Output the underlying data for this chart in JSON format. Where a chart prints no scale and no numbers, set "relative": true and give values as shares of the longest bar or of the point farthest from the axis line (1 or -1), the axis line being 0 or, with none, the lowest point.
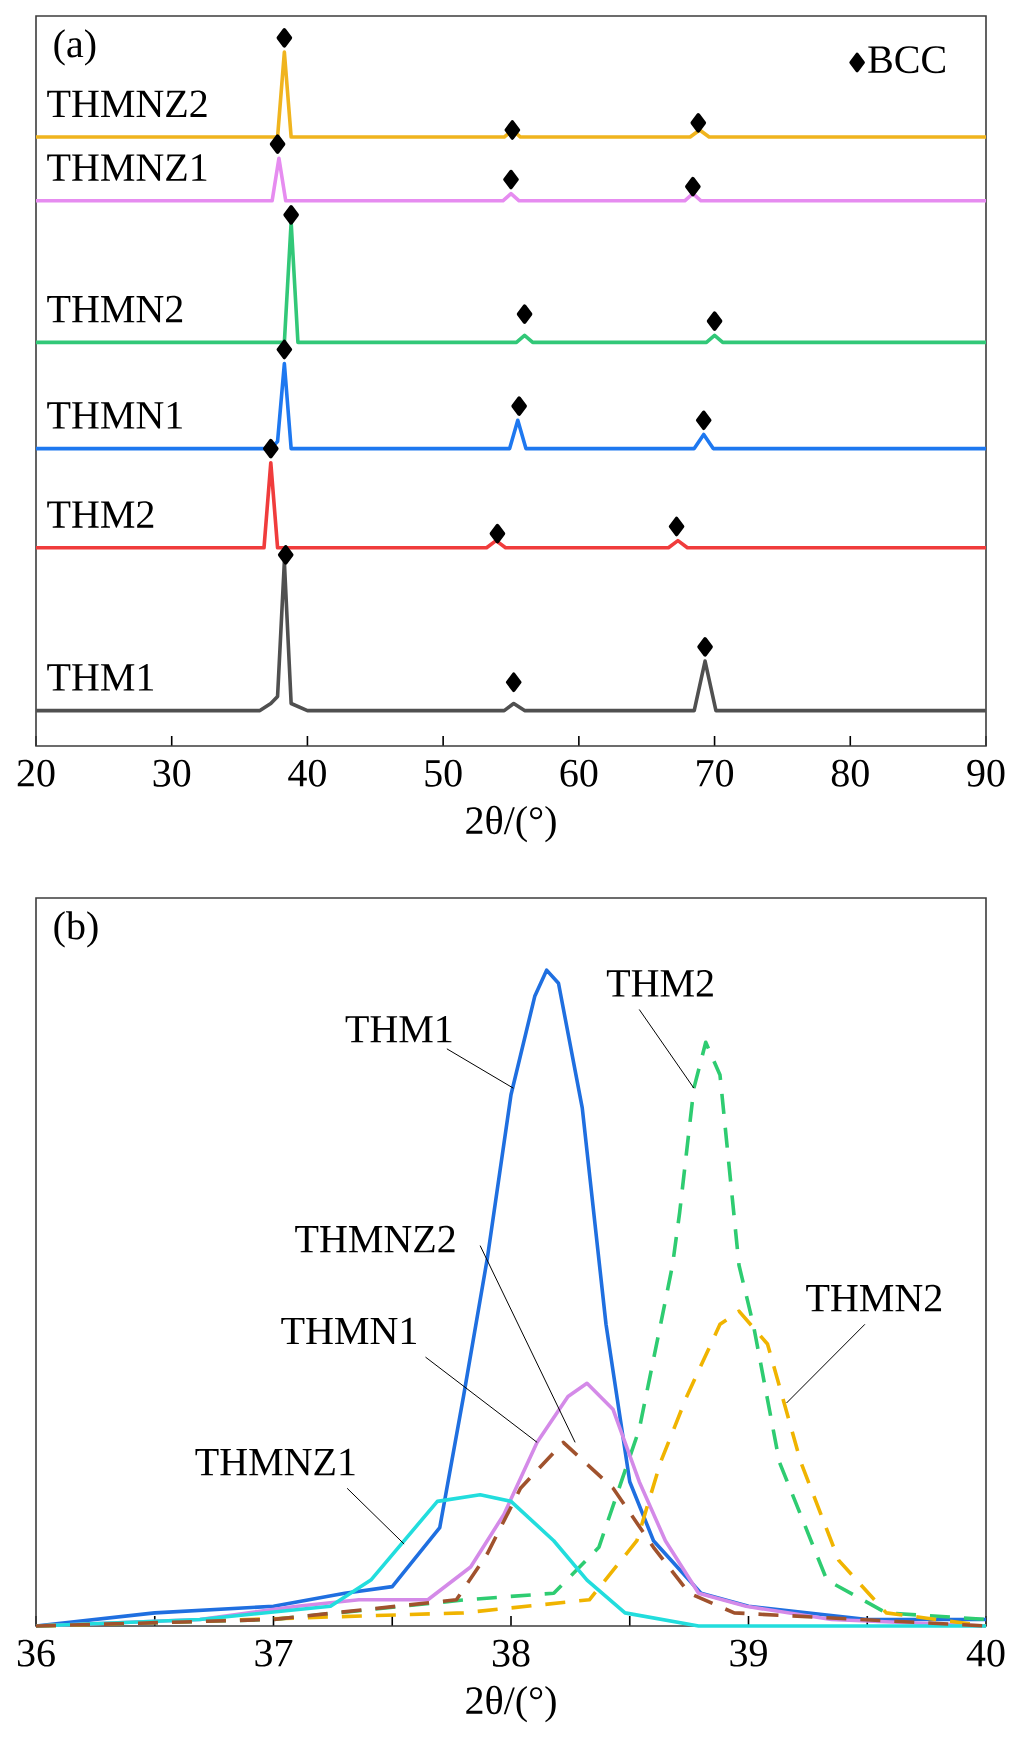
{
  "chart_data": [
    {
      "type": "line",
      "relative": true,
      "xlabel": "2θ/(°)",
      "xlim": [
        20,
        90
      ],
      "xticks": [
        20,
        30,
        40,
        50,
        60,
        70,
        80,
        90
      ],
      "legend": "top right",
      "annotations": [
        "(a)"
      ],
      "series": [
        {
          "name": "THM1",
          "color": "#505050",
          "x": [
            20,
            36.5,
            37.3,
            37.8,
            38.3,
            38.8,
            40,
            54.5,
            55.2,
            56,
            68.5,
            69.3,
            70.1,
            90
          ],
          "values": [
            0.05,
            0.05,
            0.06,
            0.07,
            0.26,
            0.06,
            0.05,
            0.05,
            0.06,
            0.05,
            0.05,
            0.12,
            0.05,
            0.05
          ]
        },
        {
          "name": "THM2",
          "color": "#f03c3c",
          "x": [
            20,
            36.8,
            37.3,
            37.8,
            53.2,
            53.9,
            54.6,
            66.6,
            67.3,
            68,
            90
          ],
          "values": [
            0.28,
            0.28,
            0.4,
            0.28,
            0.28,
            0.29,
            0.28,
            0.28,
            0.29,
            0.28,
            0.28
          ]
        },
        {
          "name": "THMN1",
          "color": "#1e78f0",
          "x": [
            20,
            37.3,
            37.8,
            38.3,
            38.8,
            54.9,
            55.5,
            56.1,
            68.5,
            69.2,
            69.9,
            90
          ],
          "values": [
            0.42,
            0.42,
            0.43,
            0.54,
            0.42,
            0.42,
            0.46,
            0.42,
            0.42,
            0.44,
            0.42,
            0.42
          ]
        },
        {
          "name": "THMN2",
          "color": "#32c878",
          "x": [
            20,
            38.3,
            38.8,
            39.3,
            55.4,
            56.0,
            56.6,
            69.4,
            70.0,
            70.6,
            90
          ],
          "values": [
            0.57,
            0.57,
            0.74,
            0.57,
            0.57,
            0.58,
            0.57,
            0.57,
            0.58,
            0.57,
            0.57
          ]
        },
        {
          "name": "THMNZ1",
          "color": "#e68cf0",
          "x": [
            20,
            37.4,
            37.9,
            38.4,
            54.4,
            55.0,
            55.6,
            67.8,
            68.4,
            69,
            90
          ],
          "values": [
            0.77,
            0.77,
            0.83,
            0.77,
            0.77,
            0.78,
            0.77,
            0.77,
            0.78,
            0.77,
            0.77
          ]
        },
        {
          "name": "THMNZ2",
          "color": "#f0b41e",
          "x": [
            20,
            37.8,
            38.3,
            38.8,
            54.5,
            55.1,
            55.7,
            68.2,
            68.9,
            69.6,
            90
          ],
          "values": [
            0.86,
            0.86,
            0.98,
            0.86,
            0.86,
            0.87,
            0.86,
            0.86,
            0.87,
            0.86,
            0.86
          ]
        },
        {
          "name": "BCC",
          "type": "scatter",
          "marker": "diamond",
          "color": "#000000",
          "x": [
            38.4,
            55.2,
            69.3,
            37.3,
            54.0,
            67.2,
            38.3,
            55.6,
            69.2,
            38.8,
            56.0,
            70.0,
            37.8,
            55.0,
            68.4,
            38.3,
            55.1,
            68.8
          ],
          "values": [
            0.27,
            0.09,
            0.14,
            0.42,
            0.3,
            0.31,
            0.56,
            0.48,
            0.46,
            0.75,
            0.61,
            0.6,
            0.85,
            0.8,
            0.79,
            1.0,
            0.87,
            0.88
          ]
        }
      ]
    },
    {
      "type": "line",
      "relative": true,
      "xlabel": "2θ/(°)",
      "xlim": [
        36,
        40
      ],
      "xticks": [
        36,
        {
          "value": 36.5,
          "label": null
        },
        37,
        {
          "value": 37.5,
          "label": null
        },
        38,
        {
          "value": 38.5,
          "label": null
        },
        39,
        {
          "value": 39.5,
          "label": null
        },
        40
      ],
      "annotations": [
        "(b)"
      ],
      "series": [
        {
          "name": "THM1",
          "color": "#1f6fe0",
          "line_style": "solid",
          "x": [
            36,
            36.5,
            37,
            37.3,
            37.5,
            37.7,
            37.8,
            37.9,
            38.0,
            38.1,
            38.15,
            38.2,
            38.3,
            38.4,
            38.5,
            38.6,
            38.8,
            39.0,
            39.5,
            40
          ],
          "values": [
            0.0,
            0.02,
            0.03,
            0.05,
            0.06,
            0.15,
            0.35,
            0.56,
            0.81,
            0.96,
            1.0,
            0.98,
            0.79,
            0.46,
            0.22,
            0.13,
            0.05,
            0.03,
            0.01,
            0.01
          ]
        },
        {
          "name": "THM2",
          "color": "#2ecc71",
          "line_style": "dashed",
          "x": [
            36,
            37.0,
            37.81,
            38.18,
            38.37,
            38.54,
            38.63,
            38.68,
            38.71,
            38.77,
            38.82,
            38.88,
            38.96,
            39.02,
            39.13,
            39.33,
            39.58,
            40
          ],
          "values": [
            0.0,
            0.01,
            0.04,
            0.05,
            0.12,
            0.3,
            0.46,
            0.55,
            0.63,
            0.82,
            0.89,
            0.84,
            0.55,
            0.46,
            0.25,
            0.07,
            0.02,
            0.01
          ]
        },
        {
          "name": "THMN1",
          "color": "#d48ae8",
          "line_style": "solid",
          "x": [
            36,
            36.69,
            37.1,
            37.36,
            37.65,
            37.83,
            37.97,
            38.11,
            38.24,
            38.32,
            38.43,
            38.54,
            38.65,
            38.79,
            38.99,
            39.35,
            40
          ],
          "values": [
            0.0,
            0.01,
            0.03,
            0.04,
            0.04,
            0.09,
            0.17,
            0.28,
            0.35,
            0.37,
            0.33,
            0.22,
            0.13,
            0.05,
            0.03,
            0.01,
            0.0
          ]
        },
        {
          "name": "THMN2",
          "color": "#f0b400",
          "line_style": "dashed",
          "x": [
            36,
            37.8,
            38.33,
            38.53,
            38.63,
            38.74,
            38.88,
            38.96,
            39.08,
            39.22,
            39.38,
            39.58,
            40
          ],
          "values": [
            0.0,
            0.02,
            0.04,
            0.13,
            0.25,
            0.35,
            0.46,
            0.48,
            0.43,
            0.25,
            0.1,
            0.02,
            0.0
          ]
        },
        {
          "name": "THMNZ1",
          "color": "#22dddd",
          "line_style": "solid",
          "x": [
            36,
            36.69,
            37.24,
            37.41,
            37.55,
            37.69,
            37.87,
            38.0,
            38.18,
            38.32,
            38.48,
            38.79,
            40
          ],
          "values": [
            0.0,
            0.01,
            0.03,
            0.07,
            0.13,
            0.19,
            0.2,
            0.19,
            0.13,
            0.07,
            0.02,
            0.0,
            0.0
          ]
        },
        {
          "name": "THMNZ2",
          "color": "#a0522d",
          "line_style": "dashed",
          "x": [
            36,
            37.0,
            37.77,
            37.9,
            38.04,
            38.22,
            38.43,
            38.6,
            38.75,
            38.94,
            40
          ],
          "values": [
            0.0,
            0.01,
            0.04,
            0.11,
            0.21,
            0.28,
            0.21,
            0.12,
            0.05,
            0.02,
            0.0
          ]
        }
      ]
    }
  ]
}
